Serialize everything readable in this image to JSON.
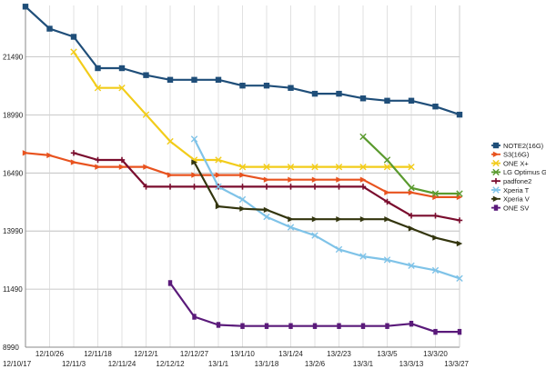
{
  "chart_data": {
    "type": "line",
    "title": "",
    "xlabel": "",
    "ylabel": "",
    "ylim": [
      8990,
      23700
    ],
    "grid": true,
    "legend_position": "right",
    "yticks": [
      8990,
      11490,
      13990,
      16490,
      18990,
      21490
    ],
    "x": [
      "12/10/17",
      "12/10/26",
      "12/11/3",
      "12/11/18",
      "12/11/24",
      "12/12/1",
      "12/12/12",
      "12/12/27",
      "13/1/1",
      "13/1/10",
      "13/1/18",
      "13/1/24",
      "13/2/6",
      "13/2/23",
      "13/3/1",
      "13/3/5",
      "13/3/13",
      "13/3/20",
      "13/3/27"
    ],
    "xticks_row1": [
      "12/10/26",
      "12/11/18",
      "12/12/1",
      "12/12/27",
      "13/1/10",
      "13/1/24",
      "13/2/23",
      "13/3/5",
      "13/3/20"
    ],
    "xticks_row2": [
      "12/10/17",
      "12/11/3",
      "12/11/24",
      "12/12/12",
      "13/1/1",
      "13/1/18",
      "13/2/6",
      "13/3/1",
      "13/3/13",
      "13/3/27"
    ],
    "series": [
      {
        "name": "NOTE2(16G)",
        "color": "#1f4e79",
        "marker": "square",
        "values": [
          23650,
          22700,
          22350,
          21000,
          21000,
          20700,
          20500,
          20500,
          20500,
          20250,
          20250,
          20150,
          19900,
          19900,
          19700,
          19600,
          19600,
          19350,
          19000
        ]
      },
      {
        "name": "S3(16G)",
        "color": "#e8531f",
        "marker": "triangle",
        "values": [
          17350,
          17250,
          16950,
          16750,
          16750,
          16750,
          16400,
          16400,
          16400,
          16400,
          16200,
          16200,
          16200,
          16200,
          16200,
          15650,
          15650,
          15450,
          15450
        ]
      },
      {
        "name": "ONE X+",
        "color": "#f2cc1a",
        "marker": "x",
        "values": [
          null,
          null,
          21700,
          20150,
          20150,
          19000,
          17850,
          17050,
          17050,
          16750,
          16750,
          16750,
          16750,
          16750,
          16750,
          16750,
          16750,
          null,
          null
        ]
      },
      {
        "name": "LG Optimus G",
        "color": "#5a9a2e",
        "marker": "x",
        "values": [
          null,
          null,
          null,
          null,
          null,
          null,
          null,
          null,
          null,
          null,
          null,
          null,
          null,
          null,
          18050,
          17050,
          15850,
          15600,
          15600
        ]
      },
      {
        "name": "padfone2",
        "color": "#7a0d2e",
        "marker": "star",
        "values": [
          null,
          null,
          17350,
          17050,
          17050,
          15900,
          15900,
          15900,
          15900,
          15900,
          15900,
          15900,
          15900,
          15900,
          15900,
          15250,
          14650,
          14650,
          14450
        ]
      },
      {
        "name": "Xperia T",
        "color": "#7fc3e8",
        "marker": "x",
        "values": [
          null,
          null,
          null,
          null,
          null,
          null,
          null,
          17950,
          15900,
          15350,
          14600,
          14150,
          13800,
          13200,
          12900,
          12750,
          12500,
          12300,
          11950
        ]
      },
      {
        "name": "Xperia V",
        "color": "#33350e",
        "marker": "triangle",
        "values": [
          null,
          null,
          null,
          null,
          null,
          null,
          null,
          16950,
          15050,
          14950,
          14900,
          14500,
          14500,
          14500,
          14500,
          14500,
          14100,
          13700,
          13450
        ]
      },
      {
        "name": "ONE SV",
        "color": "#5a1a7a",
        "marker": "bar",
        "values": [
          null,
          null,
          null,
          null,
          null,
          null,
          11750,
          10300,
          9950,
          9900,
          9900,
          9900,
          9900,
          9900,
          9900,
          9900,
          10000,
          9650,
          9650
        ]
      }
    ]
  }
}
